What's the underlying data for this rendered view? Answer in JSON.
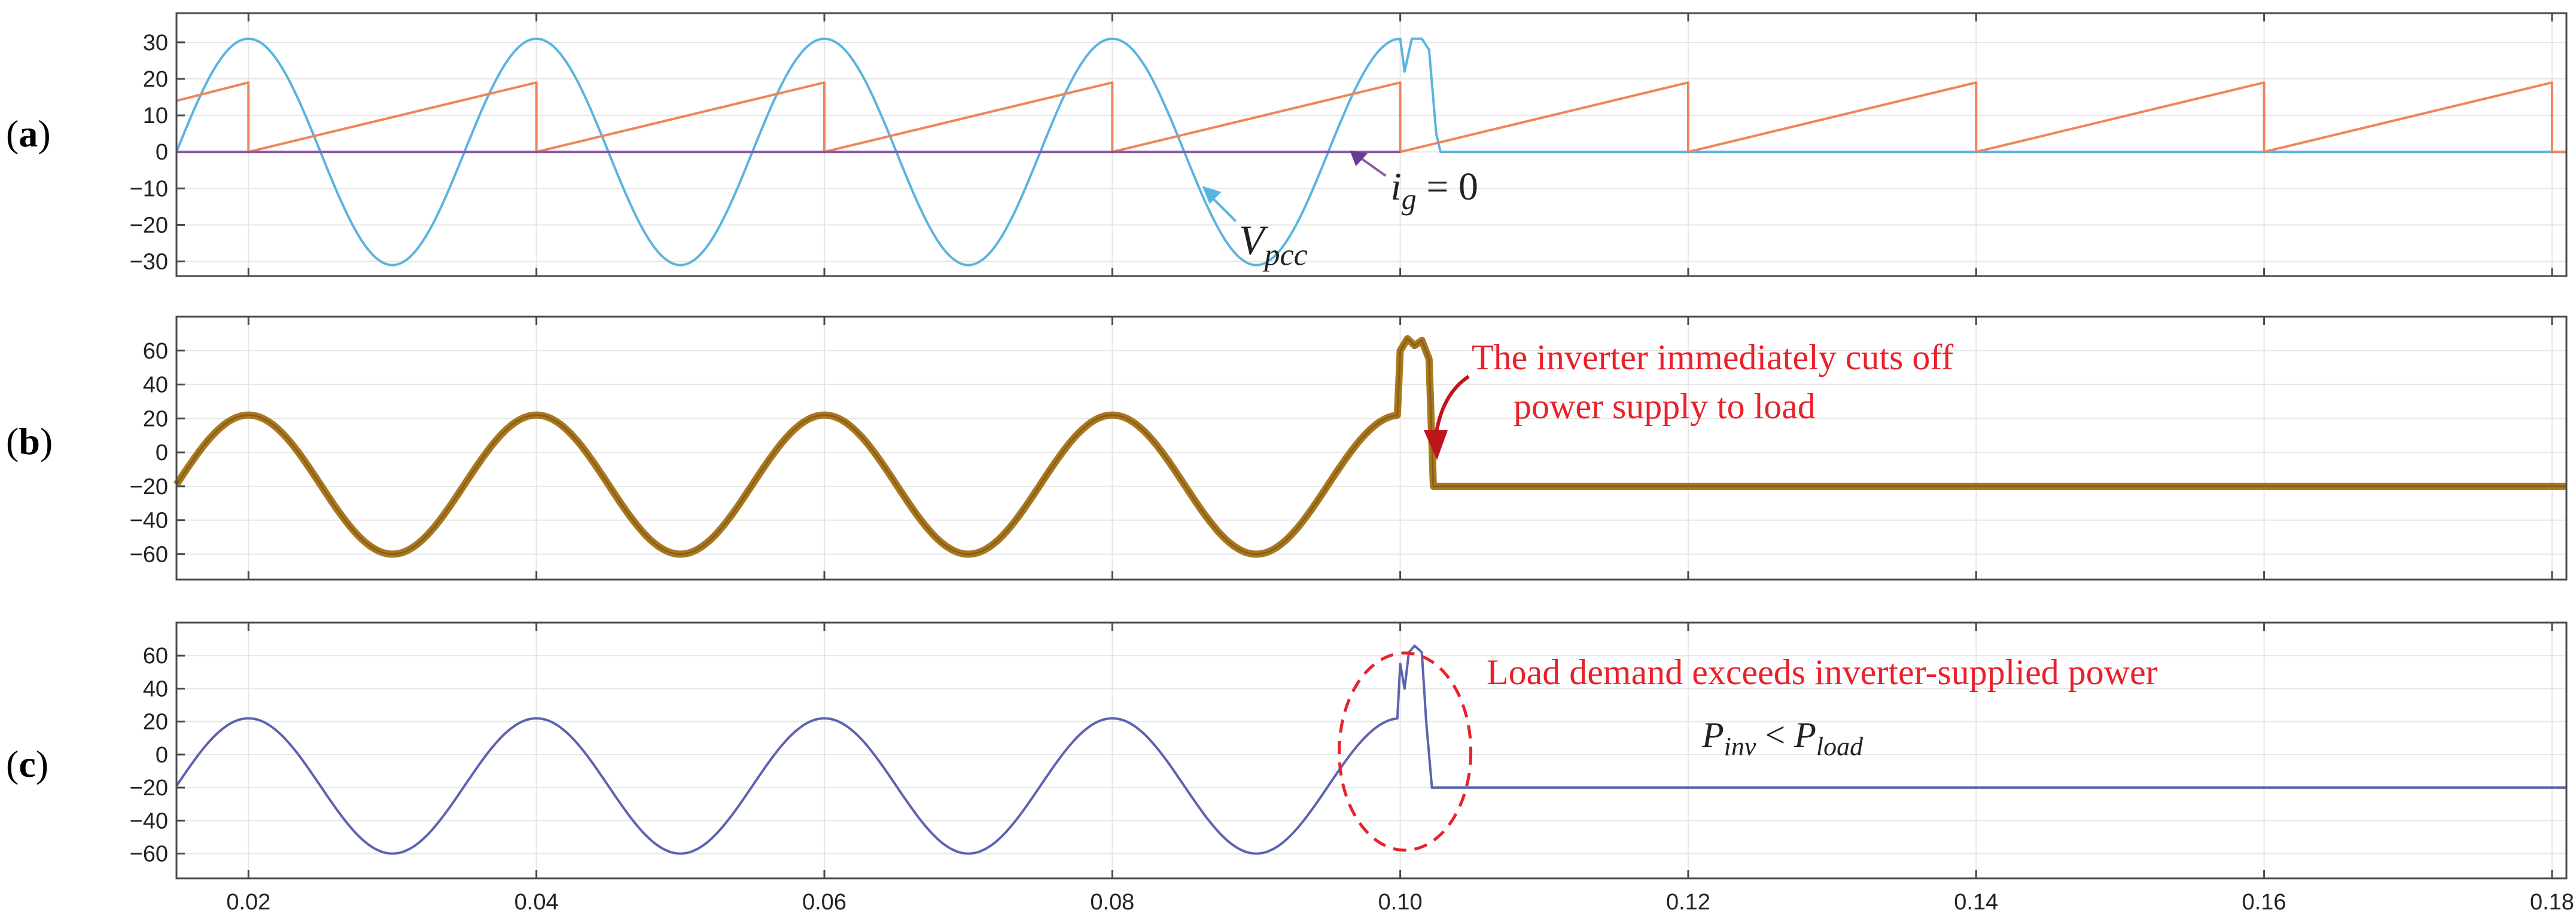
{
  "chart_data": [
    {
      "panel": "(a)",
      "type": "line",
      "xlim": [
        0.015,
        0.181
      ],
      "ylim": [
        -34,
        38
      ],
      "yticks": [
        -30,
        -20,
        -10,
        0,
        10,
        20,
        30
      ],
      "grid": true,
      "series": [
        {
          "name": "Vpcc",
          "color": "#5ab4e0",
          "x": [
            0.015,
            0.0175,
            0.02,
            0.0225,
            0.025,
            0.0275,
            0.03,
            0.0325,
            0.035,
            0.0375,
            0.04,
            0.0425,
            0.045,
            0.0475,
            0.05,
            0.0525,
            0.055,
            0.0575,
            0.06,
            0.0625,
            0.065,
            0.0675,
            0.07,
            0.0725,
            0.075,
            0.0775,
            0.08,
            0.0825,
            0.085,
            0.0875,
            0.09,
            0.0925,
            0.095,
            0.0975,
            0.0995,
            0.1,
            0.1003,
            0.1008,
            0.1015,
            0.102,
            0.1025,
            0.1028,
            0.181
          ],
          "y": [
            0,
            22,
            31,
            22,
            0,
            -22,
            -31,
            -22,
            0,
            22,
            31,
            22,
            0,
            -22,
            -31,
            -22,
            0,
            22,
            31,
            22,
            0,
            -22,
            -31,
            -22,
            0,
            22,
            31,
            22,
            0,
            -22,
            -31,
            -22,
            0,
            22,
            31,
            31,
            22,
            31,
            31,
            28,
            5,
            0,
            0
          ]
        },
        {
          "name": "sawtooth",
          "color": "#f0845a",
          "x": [
            0.015,
            0.02,
            0.02,
            0.04,
            0.04,
            0.06,
            0.06,
            0.08,
            0.08,
            0.1,
            0.1,
            0.12,
            0.12,
            0.14,
            0.14,
            0.16,
            0.16,
            0.18,
            0.18,
            0.181
          ],
          "y": [
            14,
            19,
            0,
            19,
            0,
            19,
            0,
            19,
            0,
            19,
            0,
            19,
            0,
            19,
            0,
            19,
            0,
            19,
            0,
            0
          ]
        },
        {
          "name": "ig",
          "color": "#8a5aa8",
          "x": [
            0.015,
            0.1
          ],
          "y": [
            0,
            0
          ]
        }
      ],
      "annotations": [
        {
          "id": "vpcc",
          "text_main": "V",
          "text_sub": "pcc",
          "x": 0.0865,
          "y": -10
        },
        {
          "id": "ig",
          "text_main": "i",
          "text_sub": "g",
          "text_tail": " = 0",
          "x": 0.0965,
          "y": 0
        }
      ]
    },
    {
      "panel": "(b)",
      "type": "line",
      "xlim": [
        0.015,
        0.181
      ],
      "ylim": [
        -75,
        80
      ],
      "yticks": [
        -60,
        -40,
        -20,
        0,
        20,
        40,
        60
      ],
      "grid": true,
      "series": [
        {
          "name": "inverter output",
          "color": "#a8781f",
          "x": [
            0.015,
            0.0175,
            0.02,
            0.0225,
            0.025,
            0.0275,
            0.03,
            0.0325,
            0.035,
            0.0375,
            0.04,
            0.0425,
            0.045,
            0.0475,
            0.05,
            0.0525,
            0.055,
            0.0575,
            0.06,
            0.0625,
            0.065,
            0.0675,
            0.07,
            0.0725,
            0.075,
            0.0775,
            0.08,
            0.0825,
            0.085,
            0.0875,
            0.09,
            0.0925,
            0.095,
            0.0975,
            0.0999,
            0.1,
            0.1005,
            0.101,
            0.1015,
            0.102,
            0.1023,
            0.181
          ],
          "y": [
            -19,
            12,
            22,
            12,
            -19,
            -50,
            -60,
            -50,
            -19,
            12,
            22,
            12,
            -19,
            -50,
            -60,
            -50,
            -19,
            12,
            22,
            12,
            -19,
            -50,
            -60,
            -50,
            -19,
            12,
            22,
            12,
            -19,
            -50,
            -60,
            -50,
            -19,
            12,
            22,
            60,
            67,
            63,
            66,
            55,
            -20,
            -20
          ]
        }
      ],
      "annotation": {
        "lines": [
          "The inverter immediately cuts off",
          "power supply to load"
        ],
        "color": "#e8212b"
      }
    },
    {
      "panel": "(c)",
      "type": "line",
      "xlim": [
        0.015,
        0.181
      ],
      "ylim": [
        -75,
        80
      ],
      "yticks": [
        -60,
        -40,
        -20,
        0,
        20,
        40,
        60
      ],
      "xticks": [
        0.02,
        0.04,
        0.06,
        0.08,
        0.1,
        0.12,
        0.14,
        0.16,
        0.18
      ],
      "xticklabels": [
        "0.02",
        "0.04",
        "0.06",
        "0.08",
        "0.10",
        "0.12",
        "0.14",
        "0.16",
        "0.18"
      ],
      "grid": true,
      "series": [
        {
          "name": "load power",
          "color": "#5b63b0",
          "x": [
            0.015,
            0.0175,
            0.02,
            0.0225,
            0.025,
            0.0275,
            0.03,
            0.0325,
            0.035,
            0.0375,
            0.04,
            0.0425,
            0.045,
            0.0475,
            0.05,
            0.0525,
            0.055,
            0.0575,
            0.06,
            0.0625,
            0.065,
            0.0675,
            0.07,
            0.0725,
            0.075,
            0.0775,
            0.08,
            0.0825,
            0.085,
            0.0875,
            0.09,
            0.0925,
            0.095,
            0.0975,
            0.0999,
            0.1,
            0.1003,
            0.1006,
            0.101,
            0.1015,
            0.1018,
            0.1022,
            0.181
          ],
          "y": [
            -19,
            12,
            22,
            12,
            -19,
            -50,
            -60,
            -50,
            -19,
            12,
            22,
            12,
            -19,
            -50,
            -60,
            -50,
            -19,
            12,
            22,
            12,
            -19,
            -50,
            -60,
            -50,
            -19,
            12,
            22,
            12,
            -19,
            -50,
            -60,
            -50,
            -19,
            12,
            22,
            55,
            40,
            62,
            66,
            62,
            20,
            -20,
            -20
          ]
        }
      ],
      "annotation": {
        "line1": "Load demand exceeds inverter-supplied power",
        "p1": "P",
        "p1_sub": "inv",
        "op": " < ",
        "p2": "P",
        "p2_sub": "load",
        "color": "#e8212b",
        "circle_center": [
          0.0995,
          0
        ],
        "circle_color": "#e8212b"
      }
    }
  ],
  "labels": {
    "a": "(a)",
    "b": "(b)",
    "c": "(c)"
  }
}
